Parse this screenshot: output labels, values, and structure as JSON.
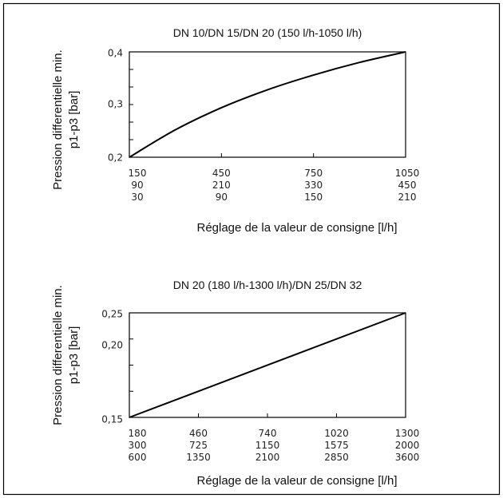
{
  "chart_data": [
    {
      "type": "line",
      "title": "DN 10/DN 15/DN 20 (150 l/h-1050 l/h)",
      "xlabel": "Réglage de la valeur de consigne [l/h]",
      "ylabel": [
        "Pression differentielle min.",
        "p1-p3 [bar]"
      ],
      "xlim": [
        150,
        1050
      ],
      "ylim": [
        0.2,
        0.4
      ],
      "y_ticks": [
        "0,4",
        "0,3",
        "0,2"
      ],
      "x_tick_rows": [
        [
          "150",
          "450",
          "750",
          "1050"
        ],
        [
          "90",
          "210",
          "330",
          "450"
        ],
        [
          "30",
          "90",
          "150",
          "210"
        ]
      ],
      "x": [
        150,
        300,
        450,
        600,
        750,
        900,
        1050
      ],
      "y": [
        0.2,
        0.252,
        0.294,
        0.328,
        0.356,
        0.38,
        0.4
      ],
      "grid": false
    },
    {
      "type": "line",
      "title": "DN 20 (180 l/h-1300 l/h)/DN 25/DN 32",
      "xlabel": "Réglage de la valeur de consigne [l/h]",
      "ylabel": [
        "Pression differentielle min.",
        "p1-p3 [bar]"
      ],
      "xlim": [
        180,
        1300
      ],
      "ylim": [
        0.15,
        0.25
      ],
      "y_ticks": [
        "0,25",
        "0,20",
        "0,15"
      ],
      "x_tick_rows": [
        [
          "180",
          "460",
          "740",
          "1020",
          "1300"
        ],
        [
          "300",
          "725",
          "1150",
          "1575",
          "2000"
        ],
        [
          "600",
          "1350",
          "2100",
          "2850",
          "3600"
        ]
      ],
      "x": [
        180,
        1300
      ],
      "y": [
        0.15,
        0.25
      ],
      "grid": false
    }
  ]
}
